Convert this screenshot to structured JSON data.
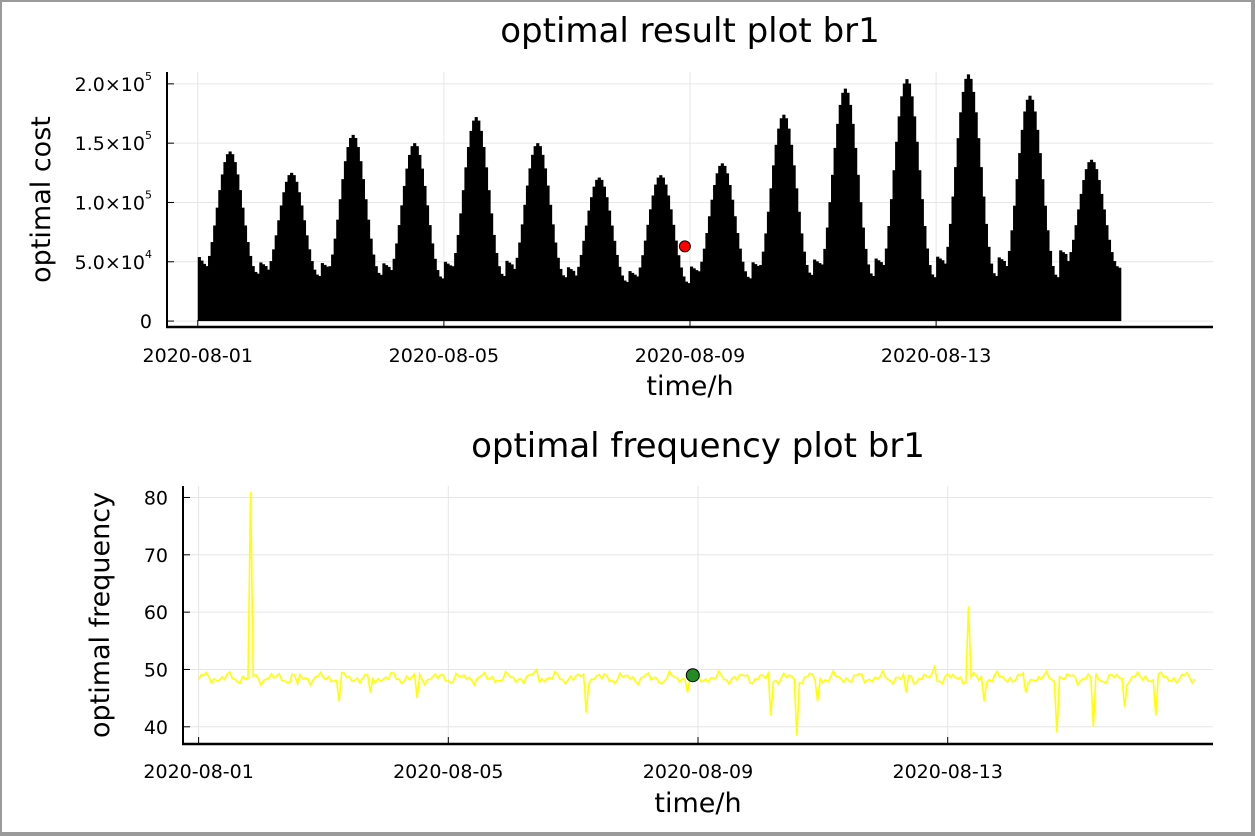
{
  "chart_data": [
    {
      "type": "bar",
      "title": "optimal result plot br1",
      "xlabel": "time/h",
      "ylabel": "optimal cost",
      "x_start": "2020-08-01",
      "x_end": "2020-08-16",
      "xlim": [
        "2020-07-31T12:00",
        "2020-08-17T12:00"
      ],
      "xticks": [
        "2020-08-01",
        "2020-08-05",
        "2020-08-09",
        "2020-08-13"
      ],
      "ylim": [
        -5000,
        210000
      ],
      "yticks": [
        {
          "value": 0,
          "mantissa": "0",
          "exponent": ""
        },
        {
          "value": 50000,
          "mantissa": "5.0×10",
          "exponent": "4"
        },
        {
          "value": 100000,
          "mantissa": "1.0×10",
          "exponent": "5"
        },
        {
          "value": 150000,
          "mantissa": "1.5×10",
          "exponent": "5"
        },
        {
          "value": 200000,
          "mantissa": "2.0×10",
          "exponent": "5"
        }
      ],
      "grid": true,
      "bar_color": "#000000",
      "daily_peaks": [
        143000,
        125000,
        157000,
        150000,
        172000,
        150000,
        121000,
        123000,
        133000,
        174000,
        196000,
        204000,
        208000,
        190000,
        136000
      ],
      "daily_troughs": [
        40000,
        38000,
        39000,
        36000,
        38000,
        37000,
        33000,
        32000,
        36000,
        39000,
        38000,
        37000,
        38000,
        37000,
        45000
      ],
      "highlight": {
        "x": "2020-08-08T22:00",
        "value": 63000,
        "color": "#ff0000"
      }
    },
    {
      "type": "line",
      "title": "optimal frequency plot br1",
      "xlabel": "time/h",
      "ylabel": "optimal frequency",
      "x_start": "2020-08-01",
      "x_end": "2020-08-16",
      "xlim": [
        "2020-07-31T18:00",
        "2020-08-17T06:00"
      ],
      "xticks": [
        "2020-08-01",
        "2020-08-05",
        "2020-08-09",
        "2020-08-13"
      ],
      "ylim": [
        37,
        82
      ],
      "yticks": [
        40,
        50,
        60,
        70,
        80
      ],
      "grid": true,
      "line_color": "#ffff00",
      "baseline": 48.5,
      "spikes": [
        {
          "x": "2020-08-01T20:00",
          "value": 81
        },
        {
          "x": "2020-08-02T14:00",
          "value": 47.5
        },
        {
          "x": "2020-08-03T06:00",
          "value": 44.5
        },
        {
          "x": "2020-08-03T18:00",
          "value": 46
        },
        {
          "x": "2020-08-04T12:00",
          "value": 45
        },
        {
          "x": "2020-08-06T10:00",
          "value": 50
        },
        {
          "x": "2020-08-07T05:00",
          "value": 42.5
        },
        {
          "x": "2020-08-08T10:00",
          "value": 47.5
        },
        {
          "x": "2020-08-08T20:00",
          "value": 46
        },
        {
          "x": "2020-08-10T04:00",
          "value": 42
        },
        {
          "x": "2020-08-10T14:00",
          "value": 38.5
        },
        {
          "x": "2020-08-10T22:00",
          "value": 44.5
        },
        {
          "x": "2020-08-12T08:00",
          "value": 46
        },
        {
          "x": "2020-08-12T19:00",
          "value": 50.5
        },
        {
          "x": "2020-08-13T08:00",
          "value": 61
        },
        {
          "x": "2020-08-13T14:00",
          "value": 44.5
        },
        {
          "x": "2020-08-14T06:00",
          "value": 46
        },
        {
          "x": "2020-08-14T18:00",
          "value": 39
        },
        {
          "x": "2020-08-15T08:00",
          "value": 40
        },
        {
          "x": "2020-08-15T20:00",
          "value": 43.5
        },
        {
          "x": "2020-08-16T08:00",
          "value": 42
        }
      ],
      "highlight": {
        "x": "2020-08-08T22:00",
        "value": 49,
        "color": "#228b22"
      }
    }
  ]
}
